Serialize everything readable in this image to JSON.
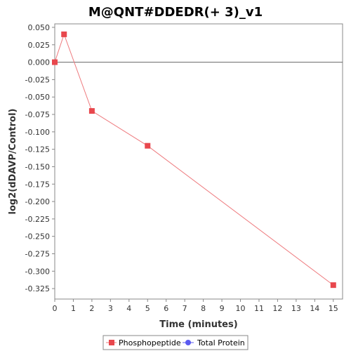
{
  "chart_data": {
    "type": "line",
    "title": "M@QNT#DDEDR(+ 3)_v1",
    "xlabel": "Time (minutes)",
    "ylabel": "log2(dDAVP/Control)",
    "xlim": [
      0,
      15.5
    ],
    "ylim": [
      -0.34,
      0.055
    ],
    "x_ticks": [
      0,
      1,
      2,
      3,
      4,
      5,
      6,
      7,
      8,
      9,
      10,
      11,
      12,
      13,
      14,
      15
    ],
    "y_ticks": [
      0.05,
      0.025,
      0.0,
      -0.025,
      -0.05,
      -0.075,
      -0.1,
      -0.125,
      -0.15,
      -0.175,
      -0.2,
      -0.225,
      -0.25,
      -0.275,
      -0.3,
      -0.325
    ],
    "x_tick_labels": [
      "0",
      "1",
      "2",
      "3",
      "4",
      "5",
      "6",
      "7",
      "8",
      "9",
      "10",
      "11",
      "12",
      "13",
      "14",
      "15"
    ],
    "y_tick_labels": [
      "0.050",
      "0.025",
      "0.000",
      "-0.025",
      "-0.050",
      "-0.075",
      "-0.100",
      "-0.125",
      "-0.150",
      "-0.175",
      "-0.200",
      "-0.225",
      "-0.250",
      "-0.275",
      "-0.300",
      "-0.325"
    ],
    "zero_line": true,
    "grid": false,
    "legend_position": "bottom",
    "series": [
      {
        "name": "Phosphopeptide",
        "marker": "square",
        "color": "#e8474d",
        "line_color": "#ee7a7e",
        "x": [
          0,
          0.5,
          2,
          5,
          15
        ],
        "y": [
          0.0,
          0.04,
          -0.07,
          -0.12,
          -0.32
        ]
      },
      {
        "name": "Total Protein",
        "marker": "circle",
        "color": "#5a5af0",
        "x": [],
        "y": []
      }
    ]
  }
}
